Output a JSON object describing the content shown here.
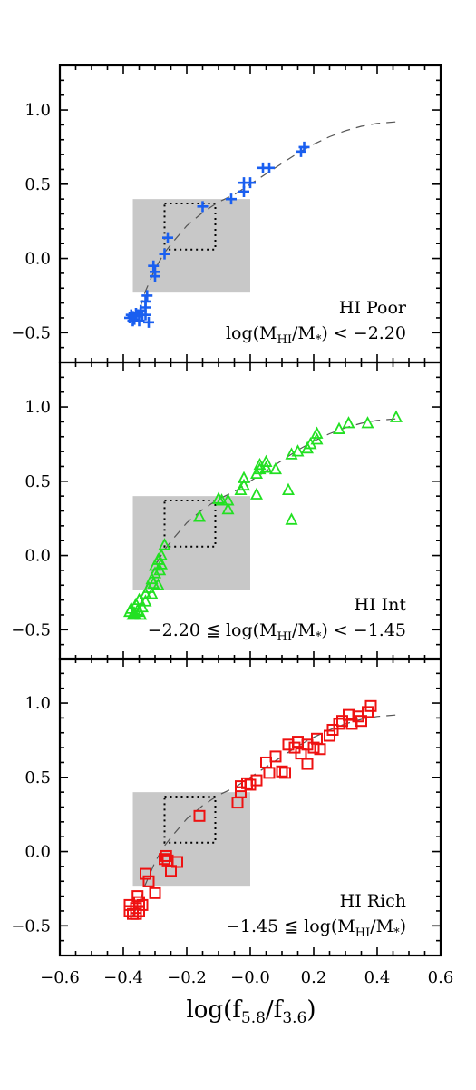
{
  "chart_data": {
    "type": "scatter",
    "xlim": [
      -0.6,
      0.6
    ],
    "ylim": [
      -0.7,
      1.3
    ],
    "x_ticks": [
      "−0.6",
      "−0.4",
      "−0.2",
      "−0.0",
      "0.2",
      "0.4",
      "0.6"
    ],
    "y_ticks": [
      "−0.5",
      "0.0",
      "0.5",
      "1.0"
    ],
    "xlabel": {
      "base": "log(f",
      "sub1": "5.8",
      "mid": "/f",
      "sub2": "3.6",
      "end": ")"
    },
    "shaded_region": {
      "x": [
        -0.37,
        -0.0
      ],
      "y": [
        -0.23,
        0.4
      ]
    },
    "dotted_box": {
      "x": [
        -0.27,
        -0.11
      ],
      "y": [
        0.06,
        0.37
      ]
    },
    "fit_curve": [
      [
        -0.37,
        -0.43
      ],
      [
        -0.35,
        -0.35
      ],
      [
        -0.33,
        -0.22
      ],
      [
        -0.3,
        -0.07
      ],
      [
        -0.27,
        0.04
      ],
      [
        -0.24,
        0.12
      ],
      [
        -0.2,
        0.22
      ],
      [
        -0.15,
        0.31
      ],
      [
        -0.1,
        0.38
      ],
      [
        -0.05,
        0.43
      ],
      [
        0.0,
        0.5
      ],
      [
        0.05,
        0.57
      ],
      [
        0.1,
        0.64
      ],
      [
        0.15,
        0.71
      ],
      [
        0.2,
        0.77
      ],
      [
        0.25,
        0.82
      ],
      [
        0.3,
        0.86
      ],
      [
        0.35,
        0.89
      ],
      [
        0.4,
        0.91
      ],
      [
        0.46,
        0.92
      ]
    ],
    "panels": [
      {
        "marker": "plus",
        "color": "#1a5ff0",
        "label_line1": "HI Poor",
        "label_line2": {
          "pre": "log(M",
          "sub": "HI",
          "mid": "/M",
          "sub2": "*",
          "post": ") < −2.20"
        },
        "points": [
          [
            -0.38,
            -0.4
          ],
          [
            -0.37,
            -0.39
          ],
          [
            -0.375,
            -0.38
          ],
          [
            -0.36,
            -0.37
          ],
          [
            -0.365,
            -0.41
          ],
          [
            -0.35,
            -0.42
          ],
          [
            -0.34,
            -0.38
          ],
          [
            -0.345,
            -0.35
          ],
          [
            -0.37,
            -0.42
          ],
          [
            -0.36,
            -0.39
          ],
          [
            -0.33,
            -0.38
          ],
          [
            -0.33,
            -0.33
          ],
          [
            -0.33,
            -0.29
          ],
          [
            -0.325,
            -0.25
          ],
          [
            -0.32,
            -0.43
          ],
          [
            -0.3,
            -0.12
          ],
          [
            -0.3,
            -0.09
          ],
          [
            -0.305,
            -0.05
          ],
          [
            -0.27,
            0.03
          ],
          [
            -0.26,
            0.14
          ],
          [
            -0.15,
            0.35
          ],
          [
            -0.06,
            0.4
          ],
          [
            -0.02,
            0.45
          ],
          [
            -0.02,
            0.51
          ],
          [
            0.0,
            0.51
          ],
          [
            0.04,
            0.61
          ],
          [
            0.06,
            0.61
          ],
          [
            0.16,
            0.72
          ],
          [
            0.17,
            0.75
          ]
        ]
      },
      {
        "marker": "triangle",
        "color": "#22e022",
        "label_line1": "HI Int",
        "label_line2": {
          "pre": "−2.20 ≦ log(M",
          "sub": "HI",
          "mid": "/M",
          "sub2": "*",
          "post": ") < −1.45"
        },
        "points": [
          [
            -0.38,
            -0.38
          ],
          [
            -0.37,
            -0.4
          ],
          [
            -0.375,
            -0.36
          ],
          [
            -0.365,
            -0.39
          ],
          [
            -0.36,
            -0.33
          ],
          [
            -0.355,
            -0.37
          ],
          [
            -0.35,
            -0.3
          ],
          [
            -0.34,
            -0.35
          ],
          [
            -0.345,
            -0.4
          ],
          [
            -0.35,
            -0.38
          ],
          [
            -0.33,
            -0.26
          ],
          [
            -0.33,
            -0.31
          ],
          [
            -0.32,
            -0.22
          ],
          [
            -0.31,
            -0.16
          ],
          [
            -0.305,
            -0.19
          ],
          [
            -0.3,
            -0.12
          ],
          [
            -0.3,
            -0.07
          ],
          [
            -0.29,
            -0.03
          ],
          [
            -0.285,
            -0.1
          ],
          [
            -0.28,
            0.0
          ],
          [
            -0.28,
            -0.06
          ],
          [
            -0.27,
            0.07
          ],
          [
            -0.31,
            -0.26
          ],
          [
            -0.29,
            -0.2
          ],
          [
            -0.16,
            0.26
          ],
          [
            -0.1,
            0.38
          ],
          [
            -0.09,
            0.37
          ],
          [
            -0.07,
            0.31
          ],
          [
            -0.07,
            0.37
          ],
          [
            -0.03,
            0.44
          ],
          [
            -0.02,
            0.47
          ],
          [
            -0.02,
            0.52
          ],
          [
            0.02,
            0.41
          ],
          [
            0.02,
            0.55
          ],
          [
            0.03,
            0.58
          ],
          [
            0.03,
            0.61
          ],
          [
            0.05,
            0.59
          ],
          [
            0.05,
            0.63
          ],
          [
            0.08,
            0.58
          ],
          [
            0.12,
            0.44
          ],
          [
            0.13,
            0.24
          ],
          [
            0.13,
            0.68
          ],
          [
            0.15,
            0.7
          ],
          [
            0.18,
            0.72
          ],
          [
            0.19,
            0.75
          ],
          [
            0.21,
            0.78
          ],
          [
            0.21,
            0.82
          ],
          [
            0.28,
            0.85
          ],
          [
            0.31,
            0.89
          ],
          [
            0.37,
            0.89
          ],
          [
            0.46,
            0.93
          ]
        ]
      },
      {
        "marker": "square",
        "color": "#ee1111",
        "label_line1": "HI Rich",
        "label_line2": {
          "pre": "−1.45 ≦ log(M",
          "sub": "HI",
          "mid": "/M",
          "sub2": "*",
          "post": ")"
        },
        "points": [
          [
            -0.38,
            -0.36
          ],
          [
            -0.38,
            -0.4
          ],
          [
            -0.37,
            -0.42
          ],
          [
            -0.36,
            -0.42
          ],
          [
            -0.36,
            -0.38
          ],
          [
            -0.35,
            -0.4
          ],
          [
            -0.35,
            -0.34
          ],
          [
            -0.355,
            -0.3
          ],
          [
            -0.34,
            -0.36
          ],
          [
            -0.33,
            -0.15
          ],
          [
            -0.32,
            -0.2
          ],
          [
            -0.3,
            -0.28
          ],
          [
            -0.27,
            -0.05
          ],
          [
            -0.26,
            -0.06
          ],
          [
            -0.265,
            -0.03
          ],
          [
            -0.25,
            -0.13
          ],
          [
            -0.23,
            -0.07
          ],
          [
            -0.16,
            0.24
          ],
          [
            -0.04,
            0.33
          ],
          [
            -0.03,
            0.4
          ],
          [
            -0.03,
            0.44
          ],
          [
            -0.01,
            0.46
          ],
          [
            0.0,
            0.45
          ],
          [
            0.02,
            0.48
          ],
          [
            0.05,
            0.6
          ],
          [
            0.06,
            0.53
          ],
          [
            0.08,
            0.64
          ],
          [
            0.1,
            0.54
          ],
          [
            0.11,
            0.53
          ],
          [
            0.12,
            0.72
          ],
          [
            0.14,
            0.7
          ],
          [
            0.15,
            0.74
          ],
          [
            0.16,
            0.66
          ],
          [
            0.18,
            0.59
          ],
          [
            0.18,
            0.72
          ],
          [
            0.2,
            0.7
          ],
          [
            0.21,
            0.76
          ],
          [
            0.22,
            0.69
          ],
          [
            0.25,
            0.78
          ],
          [
            0.26,
            0.82
          ],
          [
            0.28,
            0.86
          ],
          [
            0.29,
            0.88
          ],
          [
            0.31,
            0.92
          ],
          [
            0.32,
            0.86
          ],
          [
            0.34,
            0.91
          ],
          [
            0.35,
            0.88
          ],
          [
            0.37,
            0.94
          ],
          [
            0.38,
            0.98
          ]
        ]
      }
    ]
  }
}
